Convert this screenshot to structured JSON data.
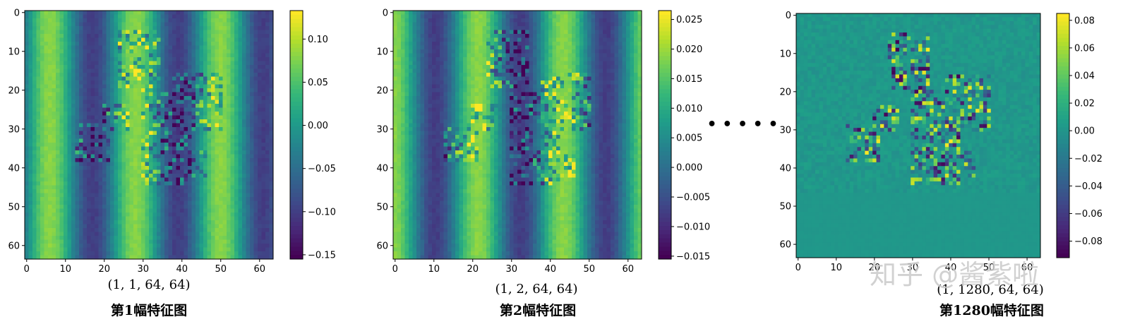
{
  "chart_data": [
    {
      "type": "heatmap",
      "title": "",
      "shape_label": "(1, 1, 64, 64)",
      "caption": "第1幅特征图",
      "x_ticks": [
        "0",
        "10",
        "20",
        "30",
        "40",
        "50",
        "60"
      ],
      "y_ticks": [
        "0",
        "10",
        "20",
        "30",
        "40",
        "50",
        "60"
      ],
      "xlim": [
        0,
        63
      ],
      "ylim": [
        0,
        63
      ],
      "colormap": "viridis",
      "colorbar": {
        "vmin": -0.155,
        "vmax": 0.133,
        "ticks": [
          -0.15,
          -0.1,
          -0.05,
          0.0,
          0.05,
          0.1
        ],
        "tick_labels": [
          "−0.15",
          "−0.10",
          "−0.05",
          "0.00",
          "0.05",
          "0.10"
        ]
      },
      "pattern": "vertical-stripes-with-texture"
    },
    {
      "type": "heatmap",
      "title": "",
      "shape_label": "(1, 2, 64, 64)",
      "caption": "第2幅特征图",
      "x_ticks": [
        "0",
        "10",
        "20",
        "30",
        "40",
        "50",
        "60"
      ],
      "y_ticks": [
        "0",
        "10",
        "20",
        "30",
        "40",
        "50",
        "60"
      ],
      "xlim": [
        0,
        63
      ],
      "ylim": [
        0,
        63
      ],
      "colormap": "viridis",
      "colorbar": {
        "vmin": -0.0155,
        "vmax": 0.0265,
        "ticks": [
          -0.015,
          -0.01,
          -0.005,
          0.0,
          0.005,
          0.01,
          0.015,
          0.02,
          0.025
        ],
        "tick_labels": [
          "−0.015",
          "−0.010",
          "−0.005",
          "0.000",
          "0.005",
          "0.010",
          "0.015",
          "0.020",
          "0.025"
        ]
      },
      "pattern": "vertical-stripes-with-texture"
    },
    {
      "type": "heatmap",
      "title": "",
      "shape_label": "(1, 1280, 64, 64)",
      "caption": "第1280幅特征图",
      "x_ticks": [
        "0",
        "10",
        "20",
        "30",
        "40",
        "50",
        "60"
      ],
      "y_ticks": [
        "0",
        "10",
        "20",
        "30",
        "40",
        "50",
        "60"
      ],
      "xlim": [
        0,
        63
      ],
      "ylim": [
        0,
        63
      ],
      "colormap": "viridis",
      "colorbar": {
        "vmin": -0.092,
        "vmax": 0.085,
        "ticks": [
          -0.08,
          -0.06,
          -0.04,
          -0.02,
          0.0,
          0.02,
          0.04,
          0.06,
          0.08
        ],
        "tick_labels": [
          "−0.08",
          "−0.06",
          "−0.04",
          "−0.02",
          "0.00",
          "0.02",
          "0.04",
          "0.06",
          "0.08"
        ]
      },
      "pattern": "uniform-noise-with-texture"
    }
  ],
  "ellipsis": "• • • • •",
  "watermark": "知乎 @酱紫啦",
  "colors": {
    "viridis_low": "#440154",
    "viridis_mid": "#21918c",
    "viridis_high": "#fde725"
  }
}
